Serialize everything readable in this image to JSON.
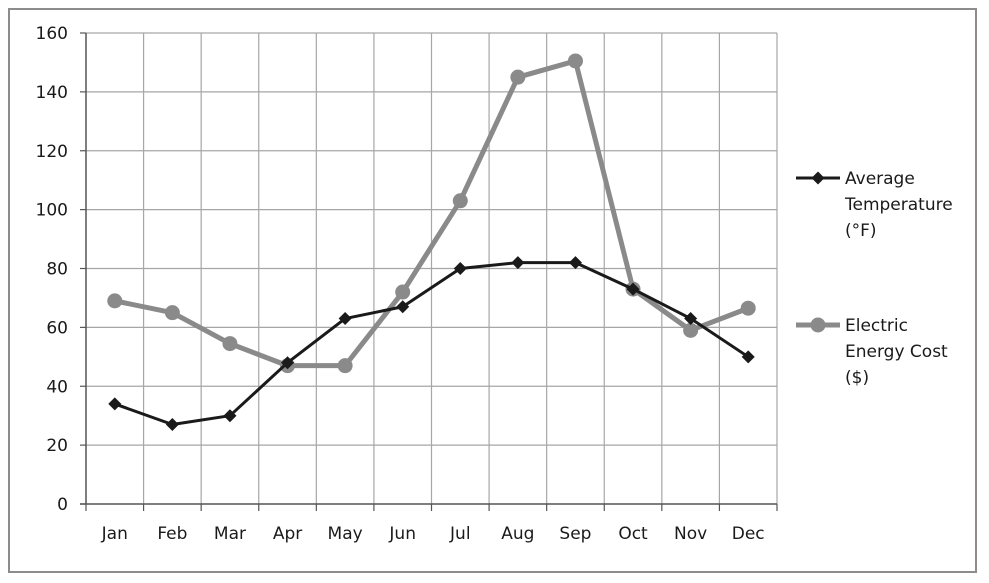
{
  "chart_data": {
    "type": "line",
    "title": "",
    "xlabel": "",
    "ylabel": "",
    "categories": [
      "Jan",
      "Feb",
      "Mar",
      "Apr",
      "May",
      "Jun",
      "Jul",
      "Aug",
      "Sep",
      "Oct",
      "Nov",
      "Dec"
    ],
    "ylim": [
      0,
      160
    ],
    "yticks": [
      0,
      20,
      40,
      60,
      80,
      100,
      120,
      140,
      160
    ],
    "grid": true,
    "legend_position": "right",
    "series": [
      {
        "name": "Average Temperature (°F)",
        "legend_lines": [
          "Average",
          "Temperature",
          "(°F)"
        ],
        "marker": "diamond",
        "color": "#1a1a1a",
        "values": [
          34,
          27,
          30,
          48,
          63,
          67,
          80,
          82,
          82,
          73,
          63,
          50
        ]
      },
      {
        "name": "Electric Energy Cost ($)",
        "legend_lines": [
          "Electric",
          "Energy Cost",
          "($)"
        ],
        "marker": "circle",
        "color": "#8a8a8a",
        "values": [
          69,
          65,
          54.5,
          47,
          47,
          72,
          103,
          145,
          150.5,
          73,
          59,
          66.5
        ]
      }
    ]
  }
}
